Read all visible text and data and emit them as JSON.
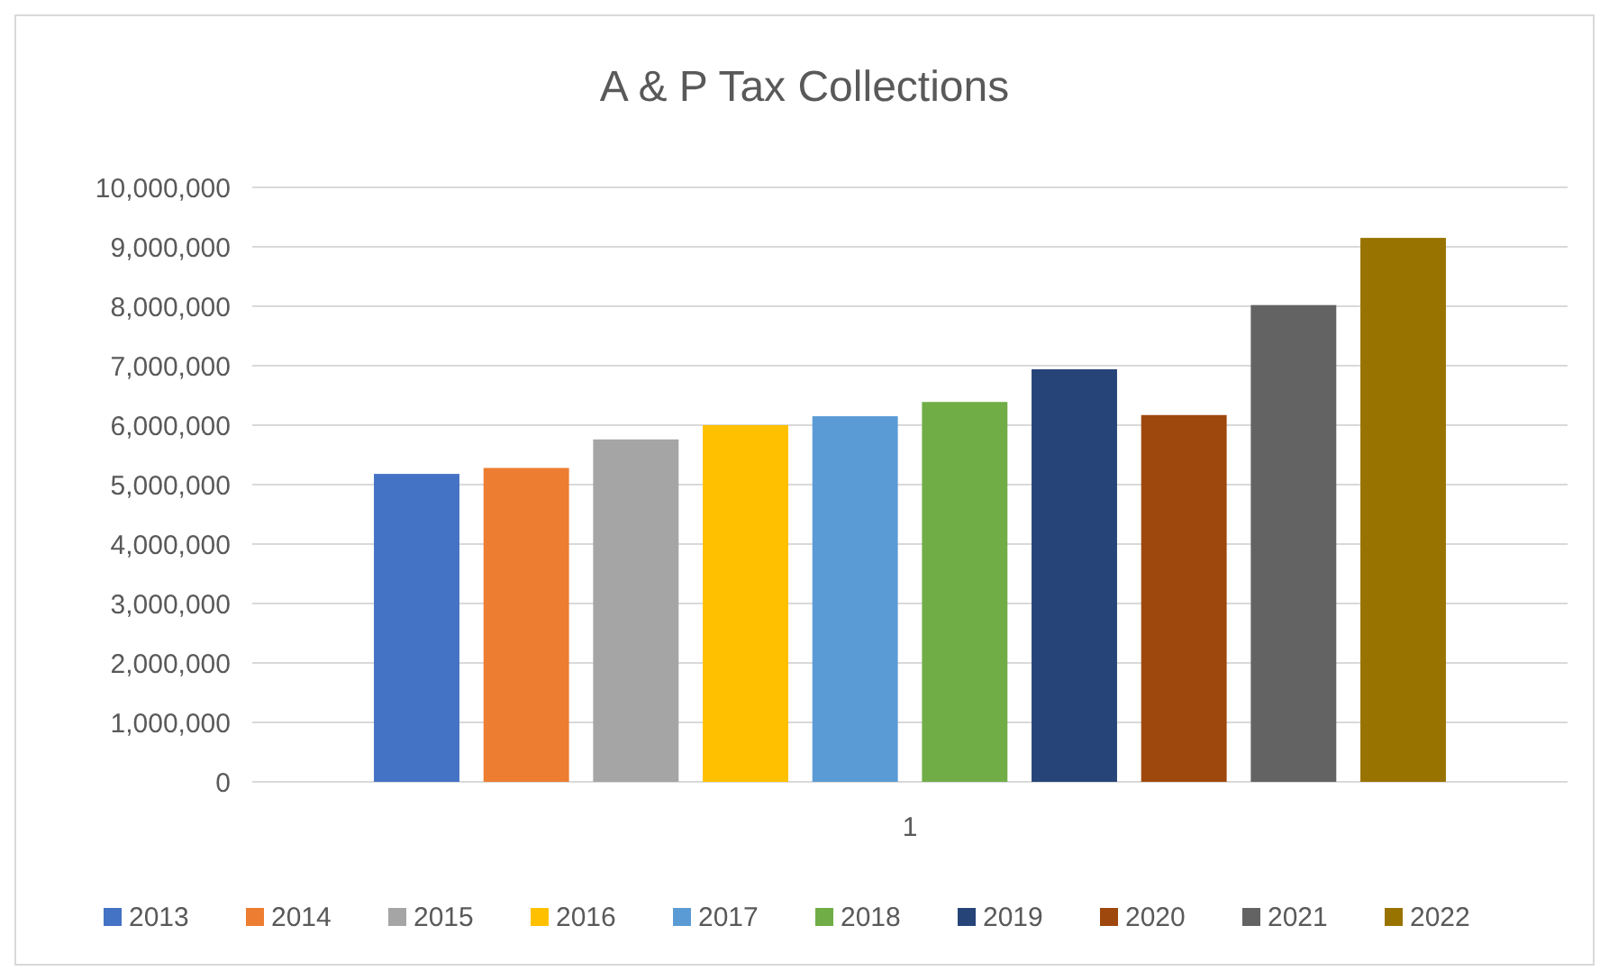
{
  "chart_data": {
    "type": "bar",
    "title": "A & P Tax Collections",
    "categories": [
      "1"
    ],
    "series": [
      {
        "name": "2013",
        "color": "#4472c4",
        "values": [
          5180000
        ]
      },
      {
        "name": "2014",
        "color": "#ed7d31",
        "values": [
          5280000
        ]
      },
      {
        "name": "2015",
        "color": "#a5a5a5",
        "values": [
          5760000
        ]
      },
      {
        "name": "2016",
        "color": "#ffc000",
        "values": [
          6000000
        ]
      },
      {
        "name": "2017",
        "color": "#5b9bd5",
        "values": [
          6150000
        ]
      },
      {
        "name": "2018",
        "color": "#70ad47",
        "values": [
          6390000
        ]
      },
      {
        "name": "2019",
        "color": "#264478",
        "values": [
          6940000
        ]
      },
      {
        "name": "2020",
        "color": "#9e480e",
        "values": [
          6170000
        ]
      },
      {
        "name": "2021",
        "color": "#636363",
        "values": [
          8020000
        ]
      },
      {
        "name": "2022",
        "color": "#997300",
        "values": [
          9150000
        ]
      }
    ],
    "ylim": [
      0,
      10000000
    ],
    "yticks": [
      {
        "value": 0,
        "label": "0"
      },
      {
        "value": 1000000,
        "label": "1,000,000"
      },
      {
        "value": 2000000,
        "label": "2,000,000"
      },
      {
        "value": 3000000,
        "label": "3,000,000"
      },
      {
        "value": 4000000,
        "label": "4,000,000"
      },
      {
        "value": 5000000,
        "label": "5,000,000"
      },
      {
        "value": 6000000,
        "label": "6,000,000"
      },
      {
        "value": 7000000,
        "label": "7,000,000"
      },
      {
        "value": 8000000,
        "label": "8,000,000"
      },
      {
        "value": 9000000,
        "label": "9,000,000"
      },
      {
        "value": 10000000,
        "label": "10,000,000"
      }
    ],
    "grid": "y",
    "legend": "bottom"
  }
}
